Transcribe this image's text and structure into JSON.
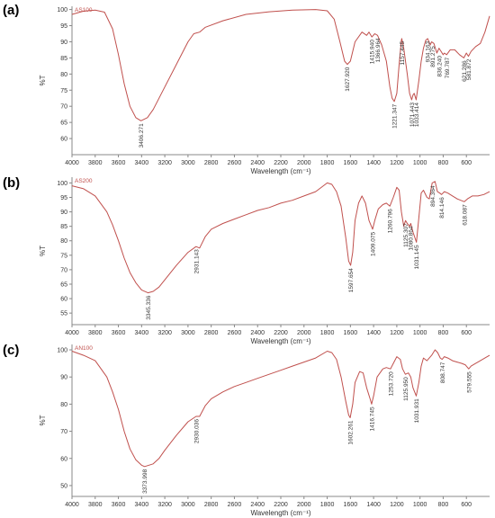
{
  "chart_data": [
    {
      "type": "line",
      "panel_label": "(a)",
      "sample_tag": "AS100",
      "xlabel": "Wavelength (cm⁻¹)",
      "ylabel": "%T",
      "xlim": [
        4000,
        400
      ],
      "ylim": [
        55,
        101
      ],
      "x_ticks": [
        "4000",
        "3800",
        "3600",
        "3400",
        "3200",
        "3000",
        "2800",
        "2600",
        "2400",
        "2200",
        "2000",
        "1800",
        "1600",
        "1400",
        "1200",
        "1000",
        "800",
        "600"
      ],
      "y_ticks": [
        "60",
        "65",
        "70",
        "75",
        "80",
        "85",
        "90",
        "95",
        "100"
      ],
      "series_color": "#c0504d",
      "points": [
        [
          4000,
          98.5
        ],
        [
          3900,
          99.5
        ],
        [
          3800,
          99.8
        ],
        [
          3720,
          99.2
        ],
        [
          3650,
          94
        ],
        [
          3600,
          86
        ],
        [
          3550,
          77
        ],
        [
          3500,
          70
        ],
        [
          3450,
          66.5
        ],
        [
          3406,
          65.5
        ],
        [
          3350,
          66.5
        ],
        [
          3300,
          69
        ],
        [
          3250,
          72.5
        ],
        [
          3200,
          76
        ],
        [
          3100,
          83
        ],
        [
          3000,
          90
        ],
        [
          2950,
          92.5
        ],
        [
          2900,
          93
        ],
        [
          2850,
          94.5
        ],
        [
          2700,
          96.5
        ],
        [
          2500,
          98.5
        ],
        [
          2300,
          99.3
        ],
        [
          2100,
          99.8
        ],
        [
          1900,
          100
        ],
        [
          1800,
          99.6
        ],
        [
          1740,
          97
        ],
        [
          1690,
          90
        ],
        [
          1650,
          84
        ],
        [
          1627,
          83
        ],
        [
          1600,
          84
        ],
        [
          1560,
          90
        ],
        [
          1500,
          93
        ],
        [
          1460,
          92
        ],
        [
          1440,
          93
        ],
        [
          1415,
          91.5
        ],
        [
          1390,
          92.5
        ],
        [
          1366,
          92
        ],
        [
          1330,
          89
        ],
        [
          1290,
          84
        ],
        [
          1260,
          76
        ],
        [
          1240,
          72.5
        ],
        [
          1222,
          71.5
        ],
        [
          1200,
          74
        ],
        [
          1180,
          83
        ],
        [
          1160,
          90.5
        ],
        [
          1157,
          91
        ],
        [
          1140,
          88
        ],
        [
          1110,
          80
        ],
        [
          1090,
          74
        ],
        [
          1072,
          72
        ],
        [
          1060,
          73.5
        ],
        [
          1050,
          74
        ],
        [
          1033,
          72
        ],
        [
          1010,
          78
        ],
        [
          990,
          84
        ],
        [
          970,
          88
        ],
        [
          950,
          90.5
        ],
        [
          934,
          91
        ],
        [
          912,
          89
        ],
        [
          900,
          90
        ],
        [
          880,
          89.5
        ],
        [
          855,
          86.5
        ],
        [
          836,
          88
        ],
        [
          800,
          86
        ],
        [
          790,
          86.5
        ],
        [
          770,
          86
        ],
        [
          740,
          87.5
        ],
        [
          700,
          87.5
        ],
        [
          660,
          86
        ],
        [
          622,
          85
        ],
        [
          600,
          86.5
        ],
        [
          582,
          85.5
        ],
        [
          560,
          87
        ],
        [
          520,
          88.5
        ],
        [
          480,
          89.5
        ],
        [
          440,
          93
        ],
        [
          400,
          98
        ]
      ],
      "annotations": [
        {
          "x": 3406.271,
          "y": 65.5,
          "label": "3406.271"
        },
        {
          "x": 1627.92,
          "y": 83,
          "label": "1627.920"
        },
        {
          "x": 1415.94,
          "y": 91.5,
          "label": "1415.940"
        },
        {
          "x": 1366.964,
          "y": 92,
          "label": "1366.964"
        },
        {
          "x": 1221.347,
          "y": 71.5,
          "label": "1221.347"
        },
        {
          "x": 1157.445,
          "y": 91,
          "label": "1157.445"
        },
        {
          "x": 1071.443,
          "y": 72,
          "label": "1071.443"
        },
        {
          "x": 1033.414,
          "y": 72,
          "label": "1033.414"
        },
        {
          "x": 934.163,
          "y": 91,
          "label": "934.163"
        },
        {
          "x": 891.275,
          "y": 89.5,
          "label": "891.275"
        },
        {
          "x": 836.24,
          "y": 86.5,
          "label": "836.240"
        },
        {
          "x": 769.787,
          "y": 86,
          "label": "769.787"
        },
        {
          "x": 621.286,
          "y": 85,
          "label": "621.286"
        },
        {
          "x": 581.872,
          "y": 85.5,
          "label": "581.872"
        }
      ]
    },
    {
      "type": "line",
      "panel_label": "(b)",
      "sample_tag": "AS200",
      "xlabel": "Wavelength (cm⁻¹)",
      "ylabel": "%T",
      "xlim": [
        4000,
        400
      ],
      "ylim": [
        51,
        102
      ],
      "x_ticks": [
        "4000",
        "3800",
        "3600",
        "3400",
        "3200",
        "3000",
        "2800",
        "2600",
        "2400",
        "2200",
        "2000",
        "1800",
        "1600",
        "1400",
        "1200",
        "1000",
        "800",
        "600"
      ],
      "y_ticks": [
        "55",
        "60",
        "65",
        "70",
        "75",
        "80",
        "85",
        "90",
        "95",
        "100"
      ],
      "series_color": "#c0504d",
      "points": [
        [
          4000,
          99
        ],
        [
          3900,
          98
        ],
        [
          3800,
          95.5
        ],
        [
          3700,
          90
        ],
        [
          3650,
          85.5
        ],
        [
          3600,
          80
        ],
        [
          3550,
          74
        ],
        [
          3500,
          69
        ],
        [
          3450,
          65.5
        ],
        [
          3400,
          63
        ],
        [
          3345,
          62
        ],
        [
          3300,
          62.5
        ],
        [
          3250,
          64
        ],
        [
          3200,
          66.5
        ],
        [
          3100,
          71.5
        ],
        [
          3000,
          76
        ],
        [
          2931,
          78
        ],
        [
          2900,
          77.5
        ],
        [
          2850,
          81.5
        ],
        [
          2800,
          84
        ],
        [
          2700,
          86
        ],
        [
          2600,
          87.5
        ],
        [
          2500,
          89
        ],
        [
          2400,
          90.5
        ],
        [
          2300,
          91.5
        ],
        [
          2200,
          93
        ],
        [
          2100,
          94
        ],
        [
          2000,
          95.5
        ],
        [
          1900,
          97
        ],
        [
          1800,
          100
        ],
        [
          1760,
          99.5
        ],
        [
          1720,
          97
        ],
        [
          1680,
          92
        ],
        [
          1640,
          81
        ],
        [
          1615,
          73
        ],
        [
          1598,
          71.5
        ],
        [
          1580,
          76
        ],
        [
          1560,
          87
        ],
        [
          1530,
          93
        ],
        [
          1500,
          95.5
        ],
        [
          1470,
          93
        ],
        [
          1440,
          87
        ],
        [
          1409,
          84
        ],
        [
          1390,
          87
        ],
        [
          1360,
          91
        ],
        [
          1320,
          92.5
        ],
        [
          1290,
          93
        ],
        [
          1260,
          92
        ],
        [
          1230,
          95
        ],
        [
          1200,
          98.5
        ],
        [
          1180,
          97.5
        ],
        [
          1160,
          90
        ],
        [
          1140,
          85
        ],
        [
          1125,
          87
        ],
        [
          1110,
          86
        ],
        [
          1090,
          85
        ],
        [
          1080,
          86
        ],
        [
          1060,
          83
        ],
        [
          1031,
          79.5
        ],
        [
          1010,
          88
        ],
        [
          990,
          96.5
        ],
        [
          970,
          97.5
        ],
        [
          940,
          95
        ],
        [
          920,
          94.5
        ],
        [
          895,
          100
        ],
        [
          870,
          100.5
        ],
        [
          850,
          97
        ],
        [
          830,
          96.5
        ],
        [
          814,
          96
        ],
        [
          790,
          97
        ],
        [
          760,
          96.5
        ],
        [
          720,
          95.5
        ],
        [
          680,
          94.5
        ],
        [
          650,
          94
        ],
        [
          618,
          93.5
        ],
        [
          590,
          94.5
        ],
        [
          550,
          95.5
        ],
        [
          500,
          95.5
        ],
        [
          450,
          96
        ],
        [
          400,
          97
        ]
      ],
      "annotations": [
        {
          "x": 3345.336,
          "y": 62,
          "label": "3345.336"
        },
        {
          "x": 2931.143,
          "y": 78,
          "label": "2931.143"
        },
        {
          "x": 1597.654,
          "y": 71.5,
          "label": "1597.654"
        },
        {
          "x": 1409.075,
          "y": 84,
          "label": "1409.075"
        },
        {
          "x": 1260.796,
          "y": 92,
          "label": "1260.796"
        },
        {
          "x": 1125.307,
          "y": 87,
          "label": "1125.307"
        },
        {
          "x": 1080.864,
          "y": 86,
          "label": "1080.864"
        },
        {
          "x": 1031.145,
          "y": 79.5,
          "label": "1031.145"
        },
        {
          "x": 894.364,
          "y": 100,
          "label": "894.364"
        },
        {
          "x": 814.146,
          "y": 96,
          "label": "814.146"
        },
        {
          "x": 618.087,
          "y": 93.5,
          "label": "618.087"
        }
      ]
    },
    {
      "type": "line",
      "panel_label": "(c)",
      "sample_tag": "AN100",
      "xlabel": "Wavelength (cm⁻¹)",
      "ylabel": "%T",
      "xlim": [
        4000,
        400
      ],
      "ylim": [
        46,
        102
      ],
      "x_ticks": [
        "4000",
        "3800",
        "3600",
        "3400",
        "3200",
        "3000",
        "2800",
        "2600",
        "2400",
        "2200",
        "2000",
        "1800",
        "1600",
        "1400",
        "1200",
        "1000",
        "800",
        "600"
      ],
      "y_ticks": [
        "50",
        "60",
        "70",
        "80",
        "90",
        "100"
      ],
      "series_color": "#c0504d",
      "points": [
        [
          4000,
          99.5
        ],
        [
          3900,
          98
        ],
        [
          3800,
          96
        ],
        [
          3700,
          90
        ],
        [
          3650,
          84.5
        ],
        [
          3600,
          78
        ],
        [
          3550,
          70
        ],
        [
          3500,
          63.5
        ],
        [
          3450,
          59.5
        ],
        [
          3400,
          57.5
        ],
        [
          3374,
          57
        ],
        [
          3300,
          58
        ],
        [
          3250,
          60
        ],
        [
          3200,
          63
        ],
        [
          3100,
          68.5
        ],
        [
          3000,
          73.5
        ],
        [
          2930,
          75.5
        ],
        [
          2900,
          75.5
        ],
        [
          2850,
          79.5
        ],
        [
          2800,
          82
        ],
        [
          2700,
          84.5
        ],
        [
          2600,
          86.5
        ],
        [
          2500,
          88
        ],
        [
          2400,
          89.5
        ],
        [
          2300,
          91
        ],
        [
          2200,
          92.5
        ],
        [
          2100,
          94
        ],
        [
          2000,
          95.5
        ],
        [
          1900,
          97
        ],
        [
          1800,
          99.5
        ],
        [
          1760,
          99
        ],
        [
          1720,
          96.5
        ],
        [
          1680,
          90
        ],
        [
          1640,
          81
        ],
        [
          1615,
          76
        ],
        [
          1602,
          75
        ],
        [
          1580,
          80
        ],
        [
          1560,
          88
        ],
        [
          1520,
          92
        ],
        [
          1490,
          91.5
        ],
        [
          1460,
          86
        ],
        [
          1430,
          82
        ],
        [
          1417,
          80
        ],
        [
          1400,
          83
        ],
        [
          1370,
          90
        ],
        [
          1320,
          93
        ],
        [
          1290,
          93.5
        ],
        [
          1254,
          93
        ],
        [
          1230,
          95
        ],
        [
          1200,
          97.5
        ],
        [
          1170,
          96.5
        ],
        [
          1150,
          93
        ],
        [
          1126,
          91
        ],
        [
          1100,
          91.5
        ],
        [
          1080,
          90
        ],
        [
          1060,
          86
        ],
        [
          1032,
          83
        ],
        [
          1010,
          88
        ],
        [
          990,
          94
        ],
        [
          970,
          97
        ],
        [
          940,
          96
        ],
        [
          900,
          98
        ],
        [
          870,
          100
        ],
        [
          848,
          99
        ],
        [
          825,
          97
        ],
        [
          809,
          96.5
        ],
        [
          790,
          97.5
        ],
        [
          760,
          97
        ],
        [
          720,
          96
        ],
        [
          680,
          95.5
        ],
        [
          640,
          95
        ],
        [
          610,
          94.5
        ],
        [
          580,
          93
        ],
        [
          560,
          94
        ],
        [
          520,
          95
        ],
        [
          480,
          96
        ],
        [
          440,
          97
        ],
        [
          400,
          98
        ]
      ],
      "annotations": [
        {
          "x": 3373.998,
          "y": 57,
          "label": "3373.998"
        },
        {
          "x": 2930.036,
          "y": 75.5,
          "label": "2930.036"
        },
        {
          "x": 1602.261,
          "y": 75,
          "label": "1602.261"
        },
        {
          "x": 1416.745,
          "y": 80,
          "label": "1416.745"
        },
        {
          "x": 1253.72,
          "y": 93,
          "label": "1253.720"
        },
        {
          "x": 1125.95,
          "y": 91,
          "label": "1125.950"
        },
        {
          "x": 1031.931,
          "y": 83,
          "label": "1031.931"
        },
        {
          "x": 808.747,
          "y": 96.5,
          "label": "808.747"
        },
        {
          "x": 579.555,
          "y": 93,
          "label": "579.555"
        }
      ]
    }
  ]
}
